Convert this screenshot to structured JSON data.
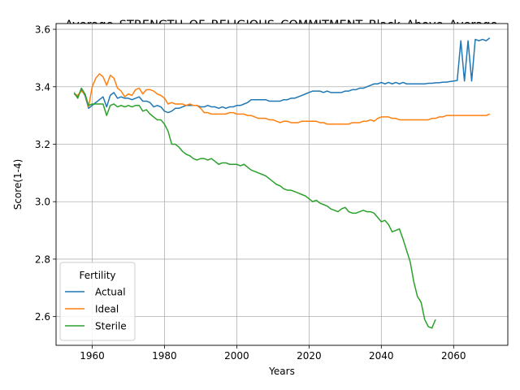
{
  "chart_data": {
    "type": "line",
    "title": "Average_STRENGTH_OF_RELIGIOUS_COMMITMENT_Black_Above_Average_",
    "xlabel": "Years",
    "ylabel": "Score(1-4)",
    "xlim": [
      1950,
      2075
    ],
    "ylim": [
      2.5,
      3.62
    ],
    "xticks": [
      1960,
      1980,
      2000,
      2020,
      2040,
      2060
    ],
    "yticks": [
      2.6,
      2.8,
      3.0,
      3.2,
      3.4,
      3.6
    ],
    "grid": true,
    "legend": {
      "title": "Fertility",
      "placement": "lower-left"
    },
    "series": [
      {
        "name": "Actual",
        "color": "#1f77b4",
        "x": [
          1955,
          1956,
          1957,
          1958,
          1959,
          1960,
          1961,
          1962,
          1963,
          1964,
          1965,
          1966,
          1967,
          1968,
          1969,
          1970,
          1971,
          1972,
          1973,
          1974,
          1975,
          1976,
          1977,
          1978,
          1979,
          1980,
          1981,
          1982,
          1983,
          1984,
          1985,
          1986,
          1987,
          1988,
          1989,
          1990,
          1991,
          1992,
          1993,
          1994,
          1995,
          1996,
          1997,
          1998,
          1999,
          2000,
          2001,
          2002,
          2003,
          2004,
          2005,
          2006,
          2007,
          2008,
          2009,
          2010,
          2011,
          2012,
          2013,
          2014,
          2015,
          2016,
          2017,
          2018,
          2019,
          2020,
          2021,
          2022,
          2023,
          2024,
          2025,
          2026,
          2027,
          2028,
          2029,
          2030,
          2031,
          2032,
          2033,
          2034,
          2035,
          2036,
          2037,
          2038,
          2039,
          2040,
          2041,
          2042,
          2043,
          2044,
          2045,
          2046,
          2047,
          2048,
          2049,
          2050,
          2051,
          2052,
          2053,
          2054,
          2055,
          2056,
          2057,
          2058,
          2059,
          2060,
          2061,
          2062,
          2063,
          2064,
          2065,
          2066,
          2067,
          2068,
          2069,
          2070
        ],
        "values": [
          3.375,
          3.365,
          3.39,
          3.37,
          3.325,
          3.335,
          3.345,
          3.355,
          3.365,
          3.33,
          3.37,
          3.38,
          3.36,
          3.365,
          3.36,
          3.36,
          3.355,
          3.36,
          3.365,
          3.35,
          3.35,
          3.345,
          3.33,
          3.335,
          3.33,
          3.315,
          3.31,
          3.315,
          3.325,
          3.325,
          3.33,
          3.335,
          3.335,
          3.335,
          3.335,
          3.33,
          3.33,
          3.335,
          3.33,
          3.33,
          3.325,
          3.33,
          3.325,
          3.33,
          3.33,
          3.335,
          3.335,
          3.34,
          3.345,
          3.355,
          3.355,
          3.355,
          3.355,
          3.355,
          3.35,
          3.35,
          3.35,
          3.35,
          3.355,
          3.355,
          3.36,
          3.36,
          3.365,
          3.37,
          3.375,
          3.38,
          3.385,
          3.385,
          3.385,
          3.38,
          3.385,
          3.38,
          3.38,
          3.38,
          3.38,
          3.385,
          3.385,
          3.39,
          3.39,
          3.395,
          3.395,
          3.4,
          3.405,
          3.41,
          3.41,
          3.415,
          3.41,
          3.415,
          3.41,
          3.415,
          3.41,
          3.415,
          3.41,
          3.41,
          3.41,
          3.41,
          3.41,
          3.41,
          3.412,
          3.412,
          3.414,
          3.414,
          3.416,
          3.416,
          3.418,
          3.42,
          3.422,
          3.56,
          3.42,
          3.56,
          3.42,
          3.565,
          3.56,
          3.565,
          3.56,
          3.57
        ]
      },
      {
        "name": "Ideal",
        "color": "#ff7f0e",
        "x": [
          1955,
          1956,
          1957,
          1958,
          1959,
          1960,
          1961,
          1962,
          1963,
          1964,
          1965,
          1966,
          1967,
          1968,
          1969,
          1970,
          1971,
          1972,
          1973,
          1974,
          1975,
          1976,
          1977,
          1978,
          1979,
          1980,
          1981,
          1982,
          1983,
          1984,
          1985,
          1986,
          1987,
          1988,
          1989,
          1990,
          1991,
          1992,
          1993,
          1994,
          1995,
          1996,
          1997,
          1998,
          1999,
          2000,
          2001,
          2002,
          2003,
          2004,
          2005,
          2006,
          2007,
          2008,
          2009,
          2010,
          2011,
          2012,
          2013,
          2014,
          2015,
          2016,
          2017,
          2018,
          2019,
          2020,
          2021,
          2022,
          2023,
          2024,
          2025,
          2026,
          2027,
          2028,
          2029,
          2030,
          2031,
          2032,
          2033,
          2034,
          2035,
          2036,
          2037,
          2038,
          2039,
          2040,
          2041,
          2042,
          2043,
          2044,
          2045,
          2046,
          2047,
          2048,
          2049,
          2050,
          2051,
          2052,
          2053,
          2054,
          2055,
          2056,
          2057,
          2058,
          2059,
          2060,
          2061,
          2062,
          2063,
          2064,
          2065,
          2066,
          2067,
          2068,
          2069,
          2070
        ],
        "values": [
          3.375,
          3.37,
          3.385,
          3.375,
          3.33,
          3.4,
          3.43,
          3.445,
          3.435,
          3.405,
          3.44,
          3.43,
          3.395,
          3.385,
          3.365,
          3.375,
          3.37,
          3.39,
          3.395,
          3.375,
          3.39,
          3.39,
          3.385,
          3.375,
          3.37,
          3.36,
          3.34,
          3.345,
          3.34,
          3.34,
          3.34,
          3.335,
          3.34,
          3.335,
          3.335,
          3.325,
          3.31,
          3.31,
          3.305,
          3.305,
          3.305,
          3.305,
          3.305,
          3.31,
          3.31,
          3.305,
          3.305,
          3.305,
          3.3,
          3.3,
          3.295,
          3.29,
          3.29,
          3.29,
          3.285,
          3.285,
          3.28,
          3.275,
          3.28,
          3.28,
          3.275,
          3.275,
          3.275,
          3.28,
          3.28,
          3.28,
          3.28,
          3.28,
          3.275,
          3.275,
          3.27,
          3.27,
          3.27,
          3.27,
          3.27,
          3.27,
          3.27,
          3.275,
          3.275,
          3.275,
          3.28,
          3.28,
          3.285,
          3.28,
          3.29,
          3.295,
          3.295,
          3.295,
          3.29,
          3.29,
          3.285,
          3.285,
          3.285,
          3.285,
          3.285,
          3.285,
          3.285,
          3.285,
          3.285,
          3.29,
          3.29,
          3.295,
          3.295,
          3.3,
          3.3,
          3.3,
          3.3,
          3.3,
          3.3,
          3.3,
          3.3,
          3.3,
          3.3,
          3.3,
          3.3,
          3.305
        ]
      },
      {
        "name": "Sterile",
        "color": "#2ca02c",
        "x": [
          1955,
          1956,
          1957,
          1958,
          1959,
          1960,
          1961,
          1962,
          1963,
          1964,
          1965,
          1966,
          1967,
          1968,
          1969,
          1970,
          1971,
          1972,
          1973,
          1974,
          1975,
          1976,
          1977,
          1978,
          1979,
          1980,
          1981,
          1982,
          1983,
          1984,
          1985,
          1986,
          1987,
          1988,
          1989,
          1990,
          1991,
          1992,
          1993,
          1994,
          1995,
          1996,
          1997,
          1998,
          1999,
          2000,
          2001,
          2002,
          2003,
          2004,
          2005,
          2006,
          2007,
          2008,
          2009,
          2010,
          2011,
          2012,
          2013,
          2014,
          2015,
          2016,
          2017,
          2018,
          2019,
          2020,
          2021,
          2022,
          2023,
          2024,
          2025,
          2026,
          2027,
          2028,
          2029,
          2030,
          2031,
          2032,
          2033,
          2034,
          2035,
          2036,
          2037,
          2038,
          2039,
          2040,
          2041,
          2042,
          2043,
          2044,
          2045,
          2046,
          2047,
          2048,
          2049,
          2050,
          2051,
          2052,
          2053,
          2054,
          2055
        ],
        "values": [
          3.38,
          3.36,
          3.395,
          3.375,
          3.335,
          3.34,
          3.34,
          3.34,
          3.34,
          3.3,
          3.335,
          3.34,
          3.33,
          3.335,
          3.33,
          3.335,
          3.33,
          3.335,
          3.335,
          3.315,
          3.32,
          3.305,
          3.295,
          3.285,
          3.285,
          3.27,
          3.245,
          3.2,
          3.2,
          3.19,
          3.175,
          3.165,
          3.16,
          3.15,
          3.145,
          3.15,
          3.15,
          3.145,
          3.15,
          3.14,
          3.13,
          3.135,
          3.135,
          3.13,
          3.13,
          3.13,
          3.125,
          3.13,
          3.12,
          3.11,
          3.105,
          3.1,
          3.095,
          3.09,
          3.08,
          3.07,
          3.06,
          3.055,
          3.045,
          3.04,
          3.04,
          3.035,
          3.03,
          3.025,
          3.02,
          3.01,
          3.0,
          3.005,
          2.995,
          2.99,
          2.985,
          2.975,
          2.97,
          2.965,
          2.975,
          2.98,
          2.965,
          2.96,
          2.96,
          2.965,
          2.97,
          2.965,
          2.965,
          2.96,
          2.945,
          2.93,
          2.935,
          2.92,
          2.895,
          2.9,
          2.905,
          2.87,
          2.83,
          2.79,
          2.72,
          2.67,
          2.65,
          2.59,
          2.565,
          2.56,
          2.59
        ]
      }
    ]
  }
}
